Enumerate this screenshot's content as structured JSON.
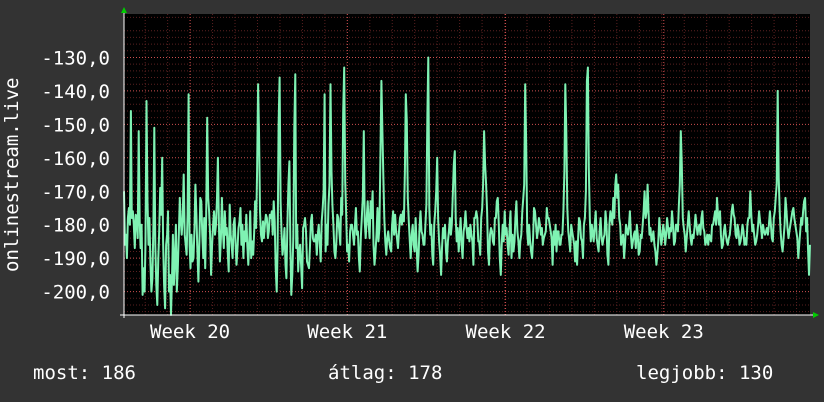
{
  "chart_data": {
    "type": "line",
    "ylabel": "onlinestream.live",
    "ylim": [
      -207,
      -117
    ],
    "yticks": [
      -130,
      -140,
      -150,
      -160,
      -170,
      -180,
      -190,
      -200
    ],
    "ytick_labels": [
      "-130,0",
      "-140,0",
      "-150,0",
      "-160,0",
      "-170,0",
      "-180,0",
      "-190,0",
      "-200,0"
    ],
    "xlim": [
      0,
      685
    ],
    "xticks": [
      {
        "label": "Week 20",
        "x": 66
      },
      {
        "label": "Week 21",
        "x": 223
      },
      {
        "label": "Week 22",
        "x": 381
      },
      {
        "label": "Week 23",
        "x": 539
      }
    ],
    "grid": true,
    "colors": {
      "background": "#333333",
      "plot": "#000000",
      "grid": "#d05050",
      "line": "#7ff2b3",
      "text": "#ffffff",
      "axis_arrow": "#00cc00"
    },
    "series": [
      {
        "values": [
          -170,
          -186,
          -183,
          -190,
          -178,
          -175,
          -180,
          -146,
          -178,
          -176,
          -180,
          -187,
          -177,
          -178,
          -184,
          -152,
          -179,
          -187,
          -180,
          -201,
          -193,
          -200,
          -185,
          -143,
          -173,
          -186,
          -178,
          -191,
          -200,
          -196,
          -180,
          -151,
          -186,
          -198,
          -204,
          -190,
          -182,
          -169,
          -177,
          -160,
          -185,
          -198,
          -205,
          -186,
          -183,
          -176,
          -200,
          -195,
          -207,
          -196,
          -183,
          -198,
          -190,
          -180,
          -200,
          -193,
          -183,
          -172,
          -179,
          -183,
          -178,
          -165,
          -183,
          -186,
          -189,
          -177,
          -141,
          -186,
          -193,
          -183,
          -191,
          -190,
          -181,
          -168,
          -177,
          -188,
          -197,
          -185,
          -172,
          -173,
          -183,
          -190,
          -178,
          -193,
          -177,
          -148,
          -172,
          -176,
          -183,
          -195,
          -186,
          -180,
          -176,
          -183,
          -180,
          -172,
          -160,
          -180,
          -191,
          -184,
          -172,
          -181,
          -187,
          -176,
          -183,
          -181,
          -188,
          -194,
          -174,
          -183,
          -186,
          -190,
          -180,
          -178,
          -186,
          -192,
          -187,
          -181,
          -179,
          -175,
          -186,
          -180,
          -190,
          -182,
          -185,
          -177,
          -186,
          -192,
          -185,
          -176,
          -190,
          -185,
          -189,
          -182,
          -173,
          -181,
          -164,
          -138,
          -152,
          -176,
          -183,
          -185,
          -179,
          -184,
          -180,
          -177,
          -178,
          -184,
          -182,
          -177,
          -178,
          -176,
          -183,
          -173,
          -179,
          -193,
          -200,
          -187,
          -150,
          -136,
          -173,
          -183,
          -189,
          -186,
          -181,
          -192,
          -196,
          -180,
          -168,
          -161,
          -187,
          -201,
          -195,
          -184,
          -151,
          -135,
          -187,
          -180,
          -194,
          -188,
          -186,
          -192,
          -199,
          -181,
          -180,
          -178,
          -182,
          -191,
          -192,
          -193,
          -187,
          -179,
          -177,
          -184,
          -185,
          -185,
          -183,
          -189,
          -183,
          -180,
          -185,
          -191,
          -179,
          -175,
          -170,
          -141,
          -188,
          -180,
          -186,
          -174,
          -168,
          -138,
          -164,
          -174,
          -180,
          -188,
          -190,
          -185,
          -177,
          -178,
          -182,
          -186,
          -172,
          -177,
          -146,
          -133,
          -167,
          -176,
          -188,
          -186,
          -191,
          -182,
          -180,
          -180,
          -183,
          -186,
          -180,
          -175,
          -183,
          -182,
          -190,
          -194,
          -184,
          -178,
          -172,
          -152,
          -179,
          -184,
          -178,
          -173,
          -180,
          -184,
          -173,
          -178,
          -170,
          -186,
          -192,
          -188,
          -183,
          -175,
          -185,
          -181,
          -160,
          -137,
          -152,
          -165,
          -178,
          -185,
          -189,
          -184,
          -182,
          -185,
          -187,
          -188,
          -180,
          -176,
          -183,
          -177,
          -182,
          -184,
          -187,
          -182,
          -178,
          -177,
          -180,
          -176,
          -179,
          -164,
          -141,
          -149,
          -172,
          -179,
          -185,
          -190,
          -183,
          -180,
          -186,
          -188,
          -178,
          -186,
          -194,
          -189,
          -181,
          -176,
          -182,
          -183,
          -186,
          -186,
          -180,
          -174,
          -147,
          -130,
          -175,
          -183,
          -180,
          -189,
          -192,
          -180,
          -176,
          -170,
          -160,
          -178,
          -185,
          -189,
          -195,
          -187,
          -181,
          -184,
          -180,
          -188,
          -191,
          -185,
          -182,
          -178,
          -183,
          -180,
          -171,
          -162,
          -158,
          -178,
          -185,
          -181,
          -188,
          -183,
          -178,
          -186,
          -190,
          -182,
          -180,
          -176,
          -181,
          -184,
          -181,
          -185,
          -180,
          -183,
          -185,
          -192,
          -178,
          -178,
          -176,
          -178,
          -185,
          -185,
          -189,
          -178,
          -175,
          -168,
          -152,
          -162,
          -168,
          -176,
          -188,
          -192,
          -183,
          -181,
          -182,
          -185,
          -186,
          -178,
          -178,
          -173,
          -172,
          -180,
          -190,
          -195,
          -186,
          -180,
          -185,
          -176,
          -183,
          -181,
          -186,
          -189,
          -181,
          -176,
          -190,
          -183,
          -188,
          -185,
          -178,
          -173,
          -182,
          -185,
          -190,
          -185,
          -183,
          -176,
          -172,
          -168,
          -138,
          -156,
          -182,
          -186,
          -180,
          -185,
          -188,
          -190,
          -184,
          -175,
          -176,
          -180,
          -184,
          -182,
          -178,
          -180,
          -183,
          -181,
          -186,
          -184,
          -183,
          -182,
          -175,
          -178,
          -178,
          -180,
          -182,
          -184,
          -192,
          -182,
          -186,
          -180,
          -188,
          -182,
          -182,
          -186,
          -186,
          -183,
          -183,
          -176,
          -164,
          -138,
          -152,
          -175,
          -182,
          -185,
          -188,
          -180,
          -182,
          -184,
          -186,
          -191,
          -185,
          -192,
          -184,
          -178,
          -179,
          -184,
          -185,
          -190,
          -180,
          -178,
          -170,
          -137,
          -133,
          -163,
          -178,
          -185,
          -180,
          -183,
          -185,
          -180,
          -176,
          -184,
          -186,
          -188,
          -182,
          -178,
          -184,
          -186,
          -184,
          -183,
          -176,
          -180,
          -189,
          -192,
          -180,
          -176,
          -178,
          -180,
          -172,
          -178,
          -168,
          -165,
          -172,
          -168,
          -178,
          -180,
          -186,
          -184,
          -183,
          -190,
          -186,
          -180,
          -182,
          -183,
          -180,
          -176,
          -183,
          -187,
          -185,
          -183,
          -182,
          -187,
          -180,
          -183,
          -189,
          -188,
          -183,
          -184,
          -180,
          -176,
          -170,
          -178,
          -176,
          -168,
          -176,
          -183,
          -181,
          -185,
          -184,
          -182,
          -186,
          -188,
          -192,
          -189,
          -185,
          -178,
          -182,
          -186,
          -184,
          -180,
          -182,
          -186,
          -183,
          -178,
          -181,
          -184,
          -181,
          -182,
          -176,
          -180,
          -186,
          -185,
          -180,
          -180,
          -182,
          -174,
          -168,
          -152,
          -162,
          -178,
          -181,
          -183,
          -188,
          -184,
          -180,
          -176,
          -180,
          -184,
          -186,
          -183,
          -184,
          -181,
          -177,
          -180,
          -183,
          -181,
          -180,
          -183,
          -178,
          -176,
          -181,
          -182,
          -186,
          -185,
          -183,
          -186,
          -183,
          -184,
          -185,
          -180,
          -180,
          -178,
          -176,
          -180,
          -172,
          -177,
          -180,
          -176,
          -183,
          -187,
          -186,
          -182,
          -180,
          -183,
          -185,
          -186,
          -184,
          -183,
          -180,
          -176,
          -174,
          -177,
          -178,
          -183,
          -184,
          -180,
          -182,
          -186,
          -185,
          -183,
          -180,
          -182,
          -186,
          -184,
          -186,
          -180,
          -178,
          -178,
          -170,
          -177,
          -182,
          -180,
          -183,
          -186,
          -185,
          -183,
          -180,
          -176,
          -179,
          -181,
          -184,
          -180,
          -182,
          -183,
          -182,
          -181,
          -183,
          -180,
          -176,
          -180,
          -184,
          -185,
          -178,
          -176,
          -172,
          -168,
          -140,
          -166,
          -176,
          -182,
          -186,
          -188,
          -184,
          -180,
          -172,
          -176,
          -181,
          -184,
          -182,
          -180,
          -178,
          -176,
          -175,
          -178,
          -180,
          -182,
          -184,
          -190,
          -186,
          -182,
          -178,
          -180,
          -176,
          -173,
          -172,
          -182,
          -178,
          -187,
          -195,
          -186
        ]
      }
    ]
  },
  "stats": {
    "now_label": "most:",
    "now_value": "186",
    "avg_label": "átlag:",
    "avg_value": "178",
    "max_label": "legjobb:",
    "max_value": "130"
  }
}
